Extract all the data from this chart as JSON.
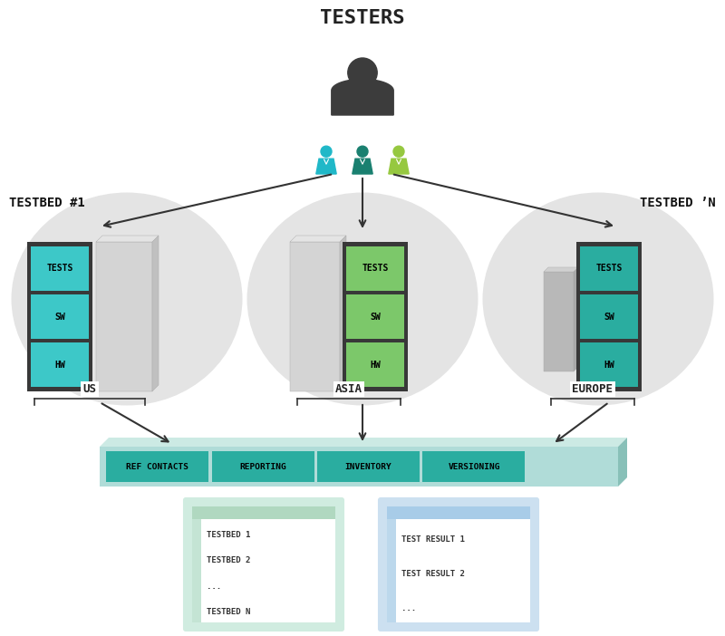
{
  "bg_color": "#ffffff",
  "title": "TESTERS",
  "title_fontsize": 16,
  "title_color": "#222222",
  "testbed1_label": "TESTBED #1",
  "testbedn_label": "TESTBED ’N",
  "us_label": "US",
  "asia_label": "ASIA",
  "europe_label": "EUROPE",
  "drawer_labels": [
    "TESTS",
    "SW",
    "HW"
  ],
  "drawer_color_cyan": "#3dc8c8",
  "drawer_color_green": "#7cc86a",
  "drawer_color_teal": "#2aada0",
  "dark_chassis": "#383838",
  "circle_color": "#e4e4e4",
  "bar_bg": "#b0dcd8",
  "bar_top": "#cceae4",
  "bar_right": "#88c0b8",
  "module_color": "#2aada0",
  "modules": [
    "REF CONTACTS",
    "REPORTING",
    "INVENTORY",
    "VERSIONING"
  ],
  "db_left_color": "#d0ece0",
  "db_left_header": "#b0d8c0",
  "db_left_inner": "#c4e4d4",
  "db_right_color": "#cce0f0",
  "db_right_header": "#a8cce8",
  "db_right_inner": "#bcd8ec",
  "db_left_items": [
    "TESTBED 1",
    "TESTBED 2",
    "...",
    "TESTBED N"
  ],
  "db_right_items": [
    "TEST RESULT 1",
    "TEST RESULT 2",
    "..."
  ],
  "person_dark": "#3c3c3c",
  "person_cyan": "#20b8c8",
  "person_teal": "#1a8070",
  "person_green": "#96c840",
  "arrow_color": "#333333"
}
